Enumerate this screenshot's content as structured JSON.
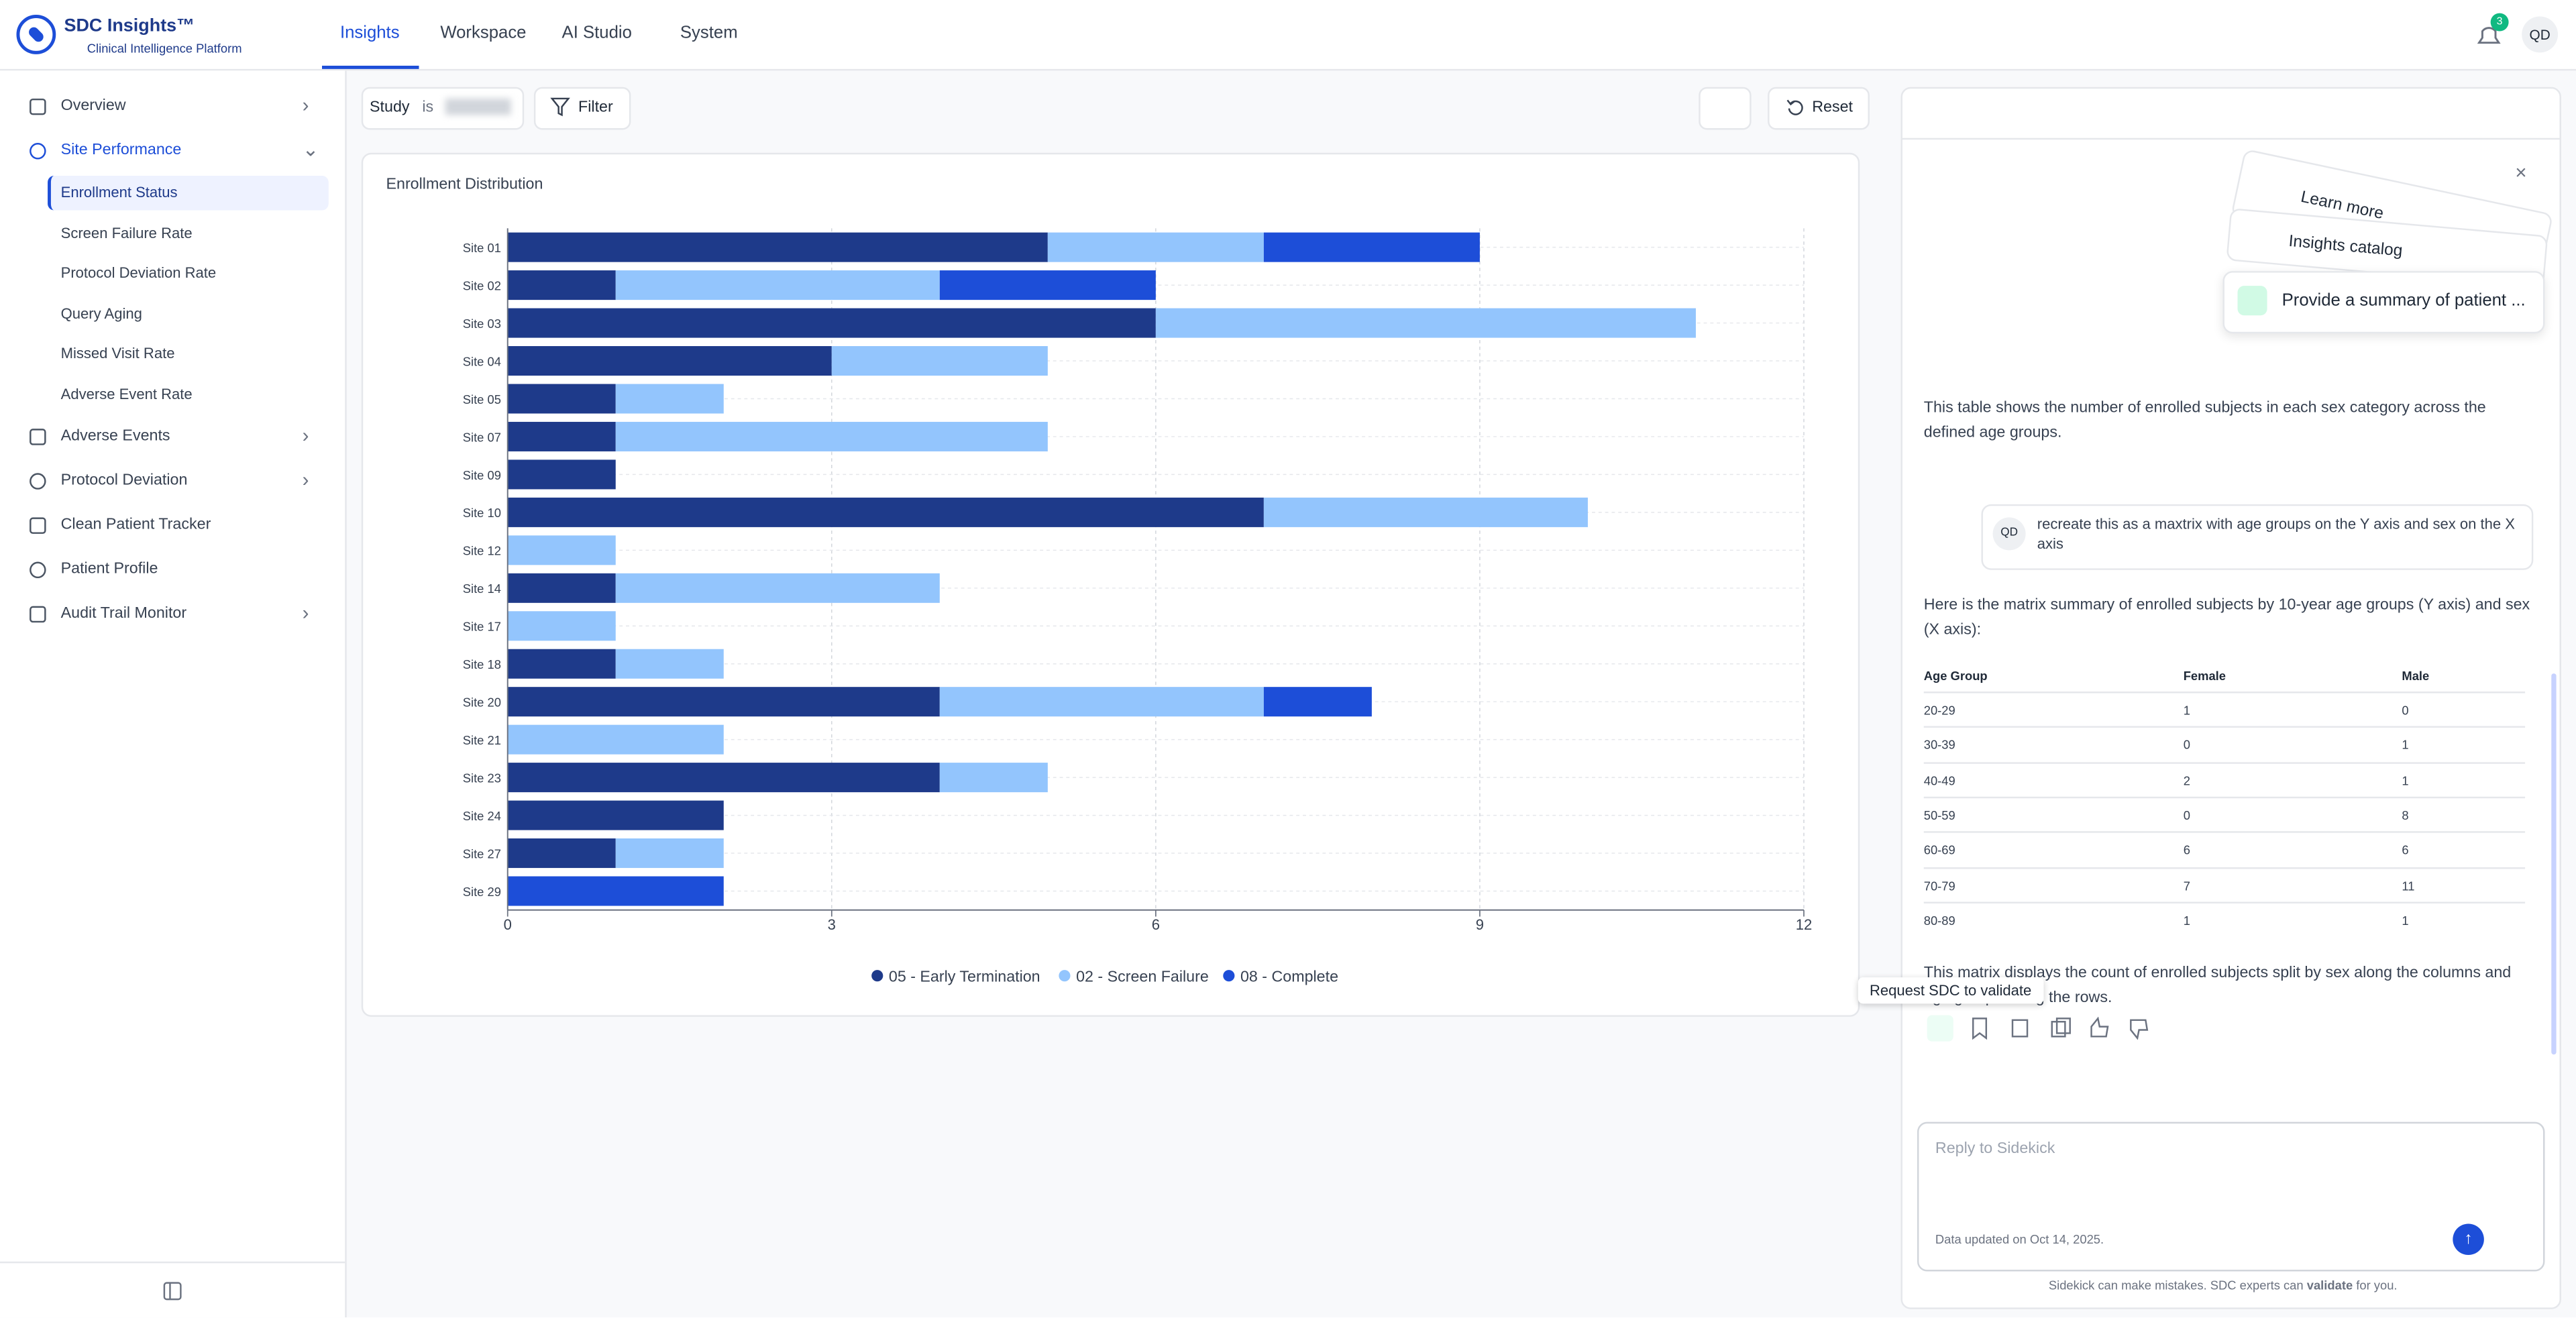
{
  "header": {
    "brand": "SDC Insights™",
    "tagline": "Clinical Intelligence Platform",
    "tabs": [
      "Insights",
      "Workspace",
      "AI Studio",
      "System"
    ],
    "notification_count": "3",
    "avatar": "QD"
  },
  "sidebar": {
    "items": [
      {
        "label": "Overview"
      },
      {
        "label": "Site Performance",
        "children": [
          "Enrollment Status",
          "Screen Failure Rate",
          "Protocol Deviation Rate",
          "Query Aging",
          "Missed Visit Rate",
          "Adverse Event Rate"
        ]
      },
      {
        "label": "Adverse Events"
      },
      {
        "label": "Protocol Deviation"
      },
      {
        "label": "Clean Patient Tracker"
      },
      {
        "label": "Patient Profile"
      },
      {
        "label": "Audit Trail Monitor"
      }
    ]
  },
  "filters": {
    "field": "Study",
    "operator": "is",
    "filter_button": "Filter",
    "reset_button": "Reset"
  },
  "chart_data": {
    "type": "bar",
    "orientation": "horizontal",
    "stacked": true,
    "title": "Enrollment Distribution",
    "categories": [
      "Site 01",
      "Site 02",
      "Site 03",
      "Site 04",
      "Site 05",
      "Site 07",
      "Site 09",
      "Site 10",
      "Site 12",
      "Site 14",
      "Site 17",
      "Site 18",
      "Site 20",
      "Site 21",
      "Site 23",
      "Site 24",
      "Site 27",
      "Site 29"
    ],
    "series": [
      {
        "name": "05 - Early Termination",
        "color": "#1e3a8a",
        "values": [
          5,
          1,
          6,
          3,
          1,
          1,
          1,
          7,
          0,
          1,
          0,
          1,
          4,
          0,
          4,
          2,
          1,
          0
        ]
      },
      {
        "name": "02 - Screen Failure",
        "color": "#93c5fd",
        "values": [
          2,
          3,
          5,
          2,
          1,
          4,
          0,
          3,
          1,
          3,
          1,
          1,
          3,
          2,
          1,
          0,
          1,
          0
        ]
      },
      {
        "name": "08 - Complete",
        "color": "#1d4ed8",
        "values": [
          2,
          2,
          0,
          0,
          0,
          0,
          0,
          0,
          0,
          0,
          0,
          0,
          1,
          0,
          0,
          0,
          0,
          2
        ]
      }
    ],
    "xlim": [
      0,
      12
    ],
    "xticks": [
      0,
      3,
      6,
      9,
      12
    ],
    "grid": true,
    "legend": "bottom"
  },
  "sidekick": {
    "suggestions": [
      "Learn more",
      "Insights catalog",
      "Provide a summary of patient ..."
    ],
    "messages": [
      "This table shows the number of enrolled subjects in each sex category across the defined age groups.",
      "recreate this as a maxtrix with age groups on the Y axis and sex on the X axis",
      "Here is the matrix summary of enrolled subjects by 10-year age groups (Y axis) and sex (X axis):",
      "This matrix displays the count of enrolled subjects split by sex along the columns and age groups along the rows."
    ],
    "user_avatar": "QD",
    "table": {
      "columns": [
        "Age Group",
        "Female",
        "Male"
      ],
      "rows": [
        [
          "20-29",
          "1",
          "0"
        ],
        [
          "30-39",
          "0",
          "1"
        ],
        [
          "40-49",
          "2",
          "1"
        ],
        [
          "50-59",
          "0",
          "8"
        ],
        [
          "60-69",
          "6",
          "6"
        ],
        [
          "70-79",
          "7",
          "11"
        ],
        [
          "80-89",
          "1",
          "1"
        ]
      ]
    },
    "tooltip": "Request SDC to validate",
    "reply_placeholder": "Reply to Sidekick",
    "data_updated": "Data updated on Oct 14, 2025.",
    "disclaimer": [
      "Sidekick can make mistakes. SDC experts can ",
      "validate",
      " for you."
    ]
  }
}
